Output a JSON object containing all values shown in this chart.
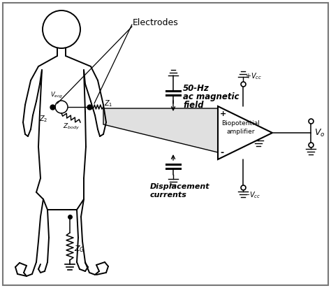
{
  "bg_color": "#ffffff",
  "border_color": "#aaaaaa",
  "shaded_color": "#e0e0e0",
  "figsize": [
    4.74,
    4.12
  ],
  "dpi": 100,
  "labels": {
    "electrodes": "Electrodes",
    "fifty_hz_1": "50-Hz",
    "fifty_hz_2": "ac magnetic",
    "fifty_hz_3": "field",
    "displacement_1": "Displacement",
    "displacement_2": "currents",
    "bio_amp_1": "Biopotential",
    "bio_amp_2": "amplifier",
    "vecg": "$V_{ecg}$",
    "z1": "$Z_1$",
    "zbody": "$Z_{body}$",
    "z2": "$Z_2$",
    "zg": "$Z_G$",
    "vcc_plus": "$+V_{cc}$",
    "vcc_minus": "$-V_{cc}$",
    "vo": "$V_o$",
    "plus": "+",
    "minus": "-"
  }
}
